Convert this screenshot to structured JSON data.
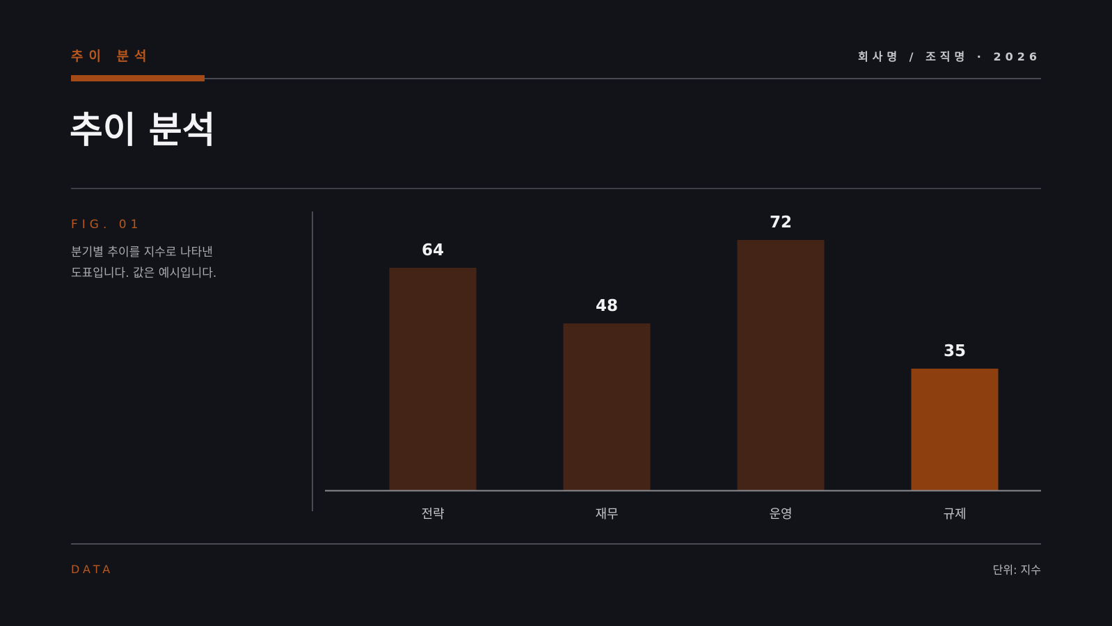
{
  "header": {
    "kicker": "추이 분석",
    "meta": "회사명 / 조직명 · 2026"
  },
  "title": "추이 분석",
  "figure": {
    "label": "FIG. 01",
    "description": "분기별 추이를 지수로 나타낸 도표입니다. 값은 예시입니다."
  },
  "footer": {
    "left": "DATA",
    "right": "단위: 지수"
  },
  "colors": {
    "background": "#121318",
    "accent": "#a34a16",
    "bar": "#442417",
    "bar_highlight": "#8e3f10"
  },
  "chart_data": {
    "type": "bar",
    "categories": [
      "전략",
      "재무",
      "운영",
      "규제"
    ],
    "values": [
      64,
      48,
      72,
      35
    ],
    "highlight_index": 3,
    "ylim": [
      0,
      80
    ],
    "grid": false,
    "legend": "none"
  }
}
